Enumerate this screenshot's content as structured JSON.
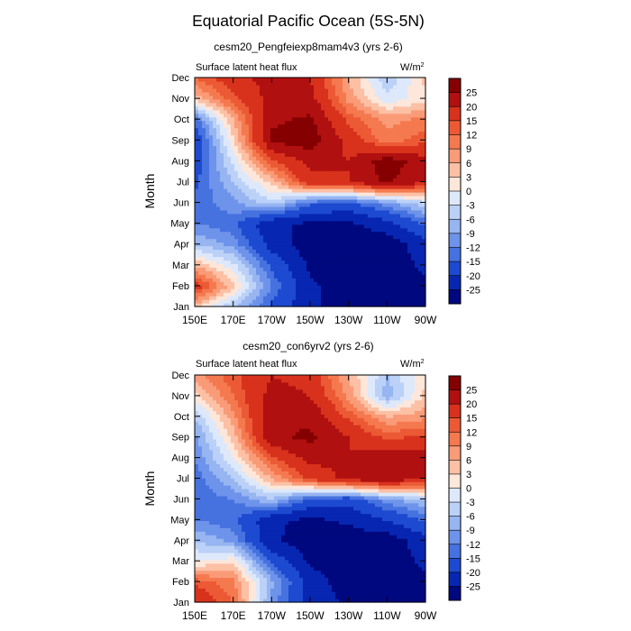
{
  "figure": {
    "title": "Equatorial Pacific Ocean (5S-5N)"
  },
  "chart_data": [
    {
      "type": "heatmap",
      "subtitle": "cesm20_Pengfeiexp8mam4v3 (yrs 2-6)",
      "variable_label": "Surface latent heat flux",
      "units_label": "W/m",
      "units_superscript": "2",
      "ylabel": "Month",
      "x_ticks": [
        "150E",
        "170E",
        "170W",
        "150W",
        "130W",
        "110W",
        "90W"
      ],
      "y_ticks": [
        "Jan",
        "Feb",
        "Mar",
        "Apr",
        "May",
        "Jun",
        "Jul",
        "Aug",
        "Sep",
        "Oct",
        "Nov",
        "Dec"
      ],
      "colorbar_levels": [
        25,
        20,
        15,
        12,
        9,
        6,
        3,
        0,
        -3,
        -6,
        -9,
        -12,
        -15,
        -20,
        -25
      ],
      "z_description": "latent heat flux anomaly (W/m2), contour-filled; positive red, negative blue",
      "grid_lon_deg_east": [
        150,
        170,
        190,
        210,
        230,
        250,
        270
      ],
      "grid_months": [
        "Jan",
        "Feb",
        "Mar",
        "Apr",
        "May",
        "Jun",
        "Jul",
        "Aug",
        "Sep",
        "Oct",
        "Nov",
        "Dec"
      ],
      "values": [
        [
          4,
          -6,
          -16,
          -24,
          -28,
          -28,
          -26
        ],
        [
          18,
          4,
          -12,
          -24,
          -28,
          -28,
          -26
        ],
        [
          6,
          -2,
          -16,
          -26,
          -28,
          -28,
          -24
        ],
        [
          -6,
          -10,
          -22,
          -28,
          -28,
          -28,
          -22
        ],
        [
          -12,
          -14,
          -24,
          -26,
          -26,
          -22,
          -14
        ],
        [
          -14,
          -10,
          -4,
          -14,
          -16,
          -10,
          -4
        ],
        [
          -16,
          -6,
          4,
          18,
          20,
          26,
          20
        ],
        [
          -18,
          -2,
          14,
          22,
          20,
          28,
          22
        ],
        [
          -20,
          2,
          26,
          28,
          18,
          10,
          14
        ],
        [
          -14,
          6,
          24,
          26,
          14,
          8,
          10
        ],
        [
          4,
          14,
          22,
          22,
          8,
          -2,
          2
        ],
        [
          12,
          18,
          22,
          20,
          6,
          -6,
          4
        ]
      ]
    },
    {
      "type": "heatmap",
      "subtitle": "cesm20_con6yrv2 (yrs 2-6)",
      "variable_label": "Surface latent heat flux",
      "units_label": "W/m",
      "units_superscript": "2",
      "ylabel": "Month",
      "x_ticks": [
        "150E",
        "170E",
        "170W",
        "150W",
        "130W",
        "110W",
        "90W"
      ],
      "y_ticks": [
        "Jan",
        "Feb",
        "Mar",
        "Apr",
        "May",
        "Jun",
        "Jul",
        "Aug",
        "Sep",
        "Oct",
        "Nov",
        "Dec"
      ],
      "colorbar_levels": [
        25,
        20,
        15,
        12,
        9,
        6,
        3,
        0,
        -3,
        -6,
        -9,
        -12,
        -15,
        -20,
        -25
      ],
      "z_description": "latent heat flux anomaly (W/m2), contour-filled; positive red, negative blue",
      "grid_lon_deg_east": [
        150,
        170,
        190,
        210,
        230,
        250,
        270
      ],
      "grid_months": [
        "Jan",
        "Feb",
        "Mar",
        "Apr",
        "May",
        "Jun",
        "Jul",
        "Aug",
        "Sep",
        "Oct",
        "Nov",
        "Dec"
      ],
      "values": [
        [
          20,
          12,
          -10,
          -22,
          -26,
          -28,
          -26
        ],
        [
          14,
          10,
          -8,
          -22,
          -28,
          -28,
          -26
        ],
        [
          0,
          2,
          -16,
          -26,
          -28,
          -28,
          -24
        ],
        [
          -6,
          -10,
          -24,
          -28,
          -28,
          -28,
          -22
        ],
        [
          -12,
          -14,
          -24,
          -26,
          -24,
          -20,
          -14
        ],
        [
          -14,
          -12,
          -6,
          -16,
          -18,
          -10,
          -6
        ],
        [
          -14,
          -6,
          6,
          16,
          22,
          24,
          20
        ],
        [
          -12,
          0,
          14,
          22,
          20,
          24,
          22
        ],
        [
          -10,
          4,
          24,
          26,
          20,
          14,
          16
        ],
        [
          -6,
          8,
          24,
          24,
          14,
          6,
          8
        ],
        [
          2,
          12,
          22,
          20,
          8,
          -8,
          4
        ],
        [
          8,
          14,
          20,
          18,
          6,
          -6,
          2
        ]
      ]
    }
  ],
  "palette": {
    "bins_high_to_low": [
      "#850000",
      "#b11010",
      "#d8321d",
      "#ec5a35",
      "#f5794f",
      "#fa9b78",
      "#fcc0a5",
      "#fde6da",
      "#dde8fb",
      "#bcd1f7",
      "#96b5f1",
      "#6e93ea",
      "#4672e0",
      "#1d4ad0",
      "#0727b2",
      "#00087f"
    ]
  }
}
